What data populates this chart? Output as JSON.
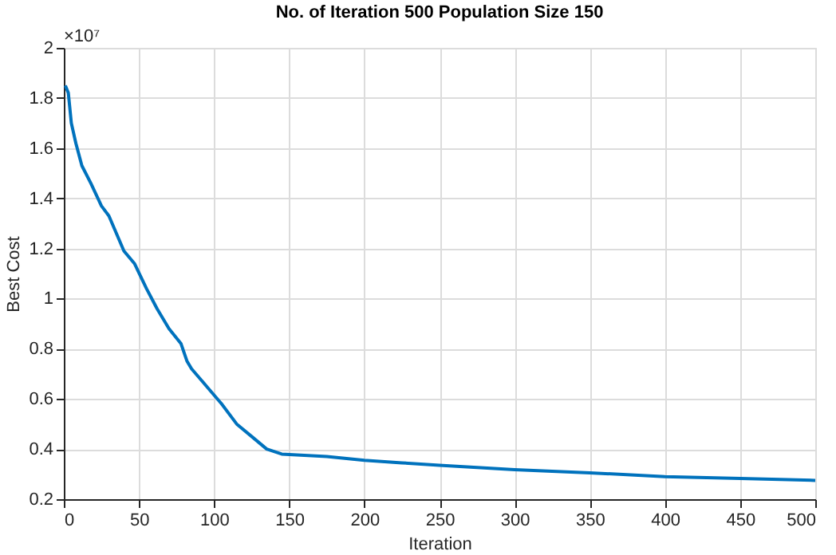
{
  "chart_data": {
    "type": "line",
    "title": "No. of Iteration 500 Population Size 150",
    "xlabel": "Iteration",
    "ylabel": "Best Cost",
    "annotations": [
      "×10⁷"
    ],
    "x": [
      1,
      3,
      5,
      8,
      12,
      18,
      25,
      30,
      40,
      47,
      55,
      62,
      70,
      78,
      82,
      85,
      95,
      105,
      115,
      125,
      135,
      145,
      150,
      175,
      200,
      225,
      250,
      300,
      350,
      400,
      450,
      500
    ],
    "series": [
      {
        "color": "#0072bd",
        "values": [
          1.85,
          1.82,
          1.7,
          1.62,
          1.53,
          1.46,
          1.37,
          1.33,
          1.19,
          1.14,
          1.04,
          0.96,
          0.88,
          0.82,
          0.75,
          0.72,
          0.65,
          0.58,
          0.5,
          0.45,
          0.4,
          0.38,
          0.378,
          0.37,
          0.355,
          0.345,
          0.335,
          0.318,
          0.305,
          0.29,
          0.283,
          0.275
        ]
      }
    ],
    "xlim": [
      0,
      500
    ],
    "xticks": [
      0,
      50,
      100,
      150,
      200,
      250,
      300,
      350,
      400,
      450,
      500
    ],
    "ylim": [
      0.2,
      2
    ],
    "yticks": [
      0.2,
      0.4,
      0.6,
      0.8,
      1,
      1.2,
      1.4,
      1.6,
      1.8,
      2
    ],
    "grid": true,
    "marker": "none",
    "line_style": "solid"
  }
}
